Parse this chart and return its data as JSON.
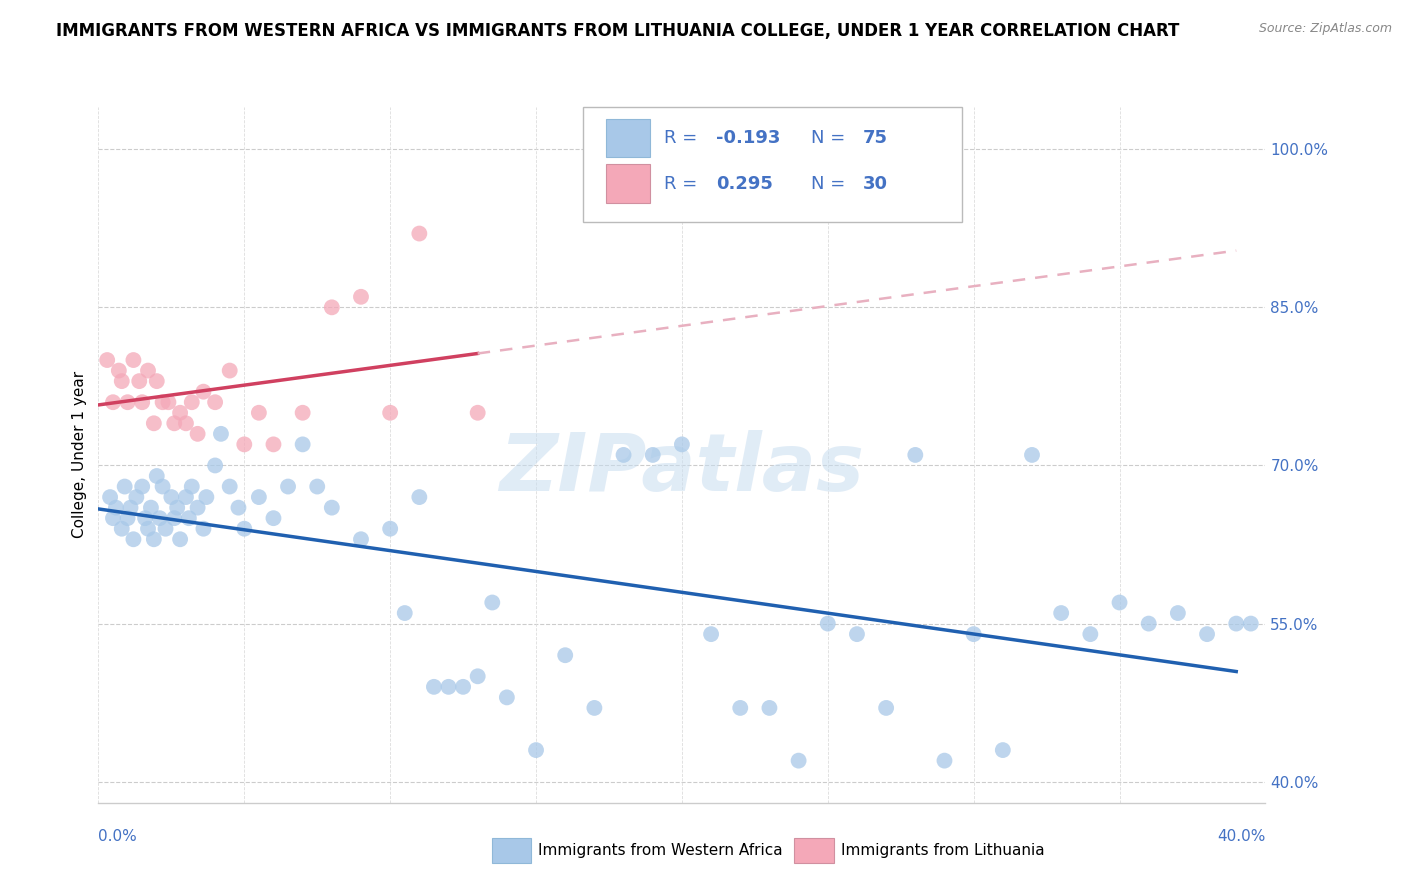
{
  "title": "IMMIGRANTS FROM WESTERN AFRICA VS IMMIGRANTS FROM LITHUANIA COLLEGE, UNDER 1 YEAR CORRELATION CHART",
  "source": "Source: ZipAtlas.com",
  "ylabel": "College, Under 1 year",
  "scatter_color_wa": "#a8c8e8",
  "scatter_color_lt": "#f4a8b8",
  "trend_color_wa": "#2060b0",
  "trend_color_lt": "#d04060",
  "trend_dash_color": "#e8b0c0",
  "watermark": "ZIPatlas",
  "label_color": "#4472c4",
  "xlim": [
    0.0,
    40.0
  ],
  "ylim": [
    38.0,
    104.0
  ],
  "yticks": [
    40.0,
    55.0,
    70.0,
    85.0,
    100.0
  ],
  "R_wa": -0.193,
  "N_wa": 75,
  "R_lt": 0.295,
  "N_lt": 30,
  "wa_x": [
    0.4,
    0.5,
    0.6,
    0.8,
    0.9,
    1.0,
    1.1,
    1.2,
    1.3,
    1.5,
    1.6,
    1.7,
    1.8,
    1.9,
    2.0,
    2.1,
    2.2,
    2.3,
    2.5,
    2.6,
    2.7,
    2.8,
    3.0,
    3.1,
    3.2,
    3.4,
    3.6,
    3.7,
    4.0,
    4.2,
    4.5,
    4.8,
    5.0,
    5.5,
    6.0,
    6.5,
    7.0,
    7.5,
    8.0,
    9.0,
    10.0,
    10.5,
    11.0,
    11.5,
    12.0,
    12.5,
    13.0,
    13.5,
    14.0,
    15.0,
    16.0,
    17.0,
    18.0,
    19.0,
    20.0,
    21.0,
    22.0,
    23.0,
    24.0,
    25.0,
    26.0,
    27.0,
    28.0,
    29.0,
    30.0,
    31.0,
    32.0,
    33.0,
    34.0,
    35.0,
    36.0,
    37.0,
    38.0,
    39.0,
    39.5
  ],
  "wa_y": [
    67.0,
    65.0,
    66.0,
    64.0,
    68.0,
    65.0,
    66.0,
    63.0,
    67.0,
    68.0,
    65.0,
    64.0,
    66.0,
    63.0,
    69.0,
    65.0,
    68.0,
    64.0,
    67.0,
    65.0,
    66.0,
    63.0,
    67.0,
    65.0,
    68.0,
    66.0,
    64.0,
    67.0,
    70.0,
    73.0,
    68.0,
    66.0,
    64.0,
    67.0,
    65.0,
    68.0,
    72.0,
    68.0,
    66.0,
    63.0,
    64.0,
    56.0,
    67.0,
    49.0,
    49.0,
    49.0,
    50.0,
    57.0,
    48.0,
    43.0,
    52.0,
    47.0,
    71.0,
    71.0,
    72.0,
    54.0,
    47.0,
    47.0,
    42.0,
    55.0,
    54.0,
    47.0,
    71.0,
    42.0,
    54.0,
    43.0,
    71.0,
    56.0,
    54.0,
    57.0,
    55.0,
    56.0,
    54.0,
    55.0,
    55.0
  ],
  "lt_x": [
    0.3,
    0.5,
    0.7,
    0.8,
    1.0,
    1.2,
    1.4,
    1.5,
    1.7,
    1.9,
    2.0,
    2.2,
    2.4,
    2.6,
    2.8,
    3.0,
    3.2,
    3.4,
    3.6,
    4.0,
    4.5,
    5.0,
    5.5,
    6.0,
    7.0,
    8.0,
    9.0,
    10.0,
    11.0,
    13.0
  ],
  "lt_y": [
    80.0,
    76.0,
    79.0,
    78.0,
    76.0,
    80.0,
    78.0,
    76.0,
    79.0,
    74.0,
    78.0,
    76.0,
    76.0,
    74.0,
    75.0,
    74.0,
    76.0,
    73.0,
    77.0,
    76.0,
    79.0,
    72.0,
    75.0,
    72.0,
    75.0,
    85.0,
    86.0,
    75.0,
    92.0,
    75.0
  ]
}
